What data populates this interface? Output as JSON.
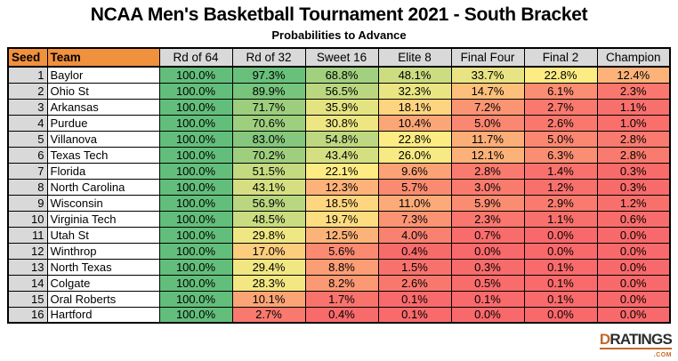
{
  "title": "NCAA Men's Basketball Tournament 2021 - South Bracket",
  "subtitle": "Probabilities to Advance",
  "chart_data": {
    "type": "table",
    "columns": [
      "Seed",
      "Team",
      "Rd of 64",
      "Rd of 32",
      "Sweet 16",
      "Elite 8",
      "Final Four",
      "Final 2",
      "Champion"
    ],
    "unit": "%",
    "rows": [
      {
        "seed": "1",
        "team": "Baylor",
        "values": [
          100.0,
          97.3,
          68.8,
          48.1,
          33.7,
          22.8,
          12.4
        ]
      },
      {
        "seed": "2",
        "team": "Ohio St",
        "values": [
          100.0,
          89.9,
          56.5,
          32.3,
          14.7,
          6.1,
          2.3
        ]
      },
      {
        "seed": "3",
        "team": "Arkansas",
        "values": [
          100.0,
          71.7,
          35.9,
          18.1,
          7.2,
          2.7,
          1.1
        ]
      },
      {
        "seed": "4",
        "team": "Purdue",
        "values": [
          100.0,
          70.6,
          30.8,
          10.4,
          5.0,
          2.6,
          1.0
        ]
      },
      {
        "seed": "5",
        "team": "Villanova",
        "values": [
          100.0,
          83.0,
          54.8,
          22.8,
          11.7,
          5.0,
          2.8
        ]
      },
      {
        "seed": "6",
        "team": "Texas Tech",
        "values": [
          100.0,
          70.2,
          43.4,
          26.0,
          12.1,
          6.3,
          2.8
        ]
      },
      {
        "seed": "7",
        "team": "Florida",
        "values": [
          100.0,
          51.5,
          22.1,
          9.6,
          2.8,
          1.4,
          0.3
        ]
      },
      {
        "seed": "8",
        "team": "North Carolina",
        "values": [
          100.0,
          43.1,
          12.3,
          5.7,
          3.0,
          1.2,
          0.3
        ]
      },
      {
        "seed": "9",
        "team": "Wisconsin",
        "values": [
          100.0,
          56.9,
          18.5,
          11.0,
          5.9,
          2.9,
          1.2
        ]
      },
      {
        "seed": "10",
        "team": "Virginia Tech",
        "values": [
          100.0,
          48.5,
          19.7,
          7.3,
          2.3,
          1.1,
          0.6
        ]
      },
      {
        "seed": "11",
        "team": "Utah St",
        "values": [
          100.0,
          29.8,
          12.5,
          4.0,
          0.7,
          0.0,
          0.0
        ]
      },
      {
        "seed": "12",
        "team": "Winthrop",
        "values": [
          100.0,
          17.0,
          5.6,
          0.4,
          0.0,
          0.0,
          0.0
        ]
      },
      {
        "seed": "13",
        "team": "North Texas",
        "values": [
          100.0,
          29.4,
          8.8,
          1.5,
          0.3,
          0.1,
          0.0
        ]
      },
      {
        "seed": "14",
        "team": "Colgate",
        "values": [
          100.0,
          28.3,
          8.2,
          2.6,
          0.5,
          0.1,
          0.0
        ]
      },
      {
        "seed": "15",
        "team": "Oral Roberts",
        "values": [
          100.0,
          10.1,
          1.7,
          0.1,
          0.1,
          0.1,
          0.0
        ]
      },
      {
        "seed": "16",
        "team": "Hartford",
        "values": [
          100.0,
          2.7,
          0.4,
          0.1,
          0.0,
          0.0,
          0.0
        ]
      }
    ]
  },
  "colors": {
    "header_orange": "#F0913E",
    "header_gray": "#D9D9D9",
    "seed_gray": "#D9D9D9",
    "scale": [
      {
        "value": 0,
        "color": "#F8696B"
      },
      {
        "value": 22,
        "color": "#FFEB84"
      },
      {
        "value": 100,
        "color": "#63BE7B"
      }
    ]
  },
  "logo": {
    "d": "D",
    "rest": "RATINGS",
    "com": ".COM",
    "orange": "#C4692A",
    "dark": "#2D2D2D"
  }
}
